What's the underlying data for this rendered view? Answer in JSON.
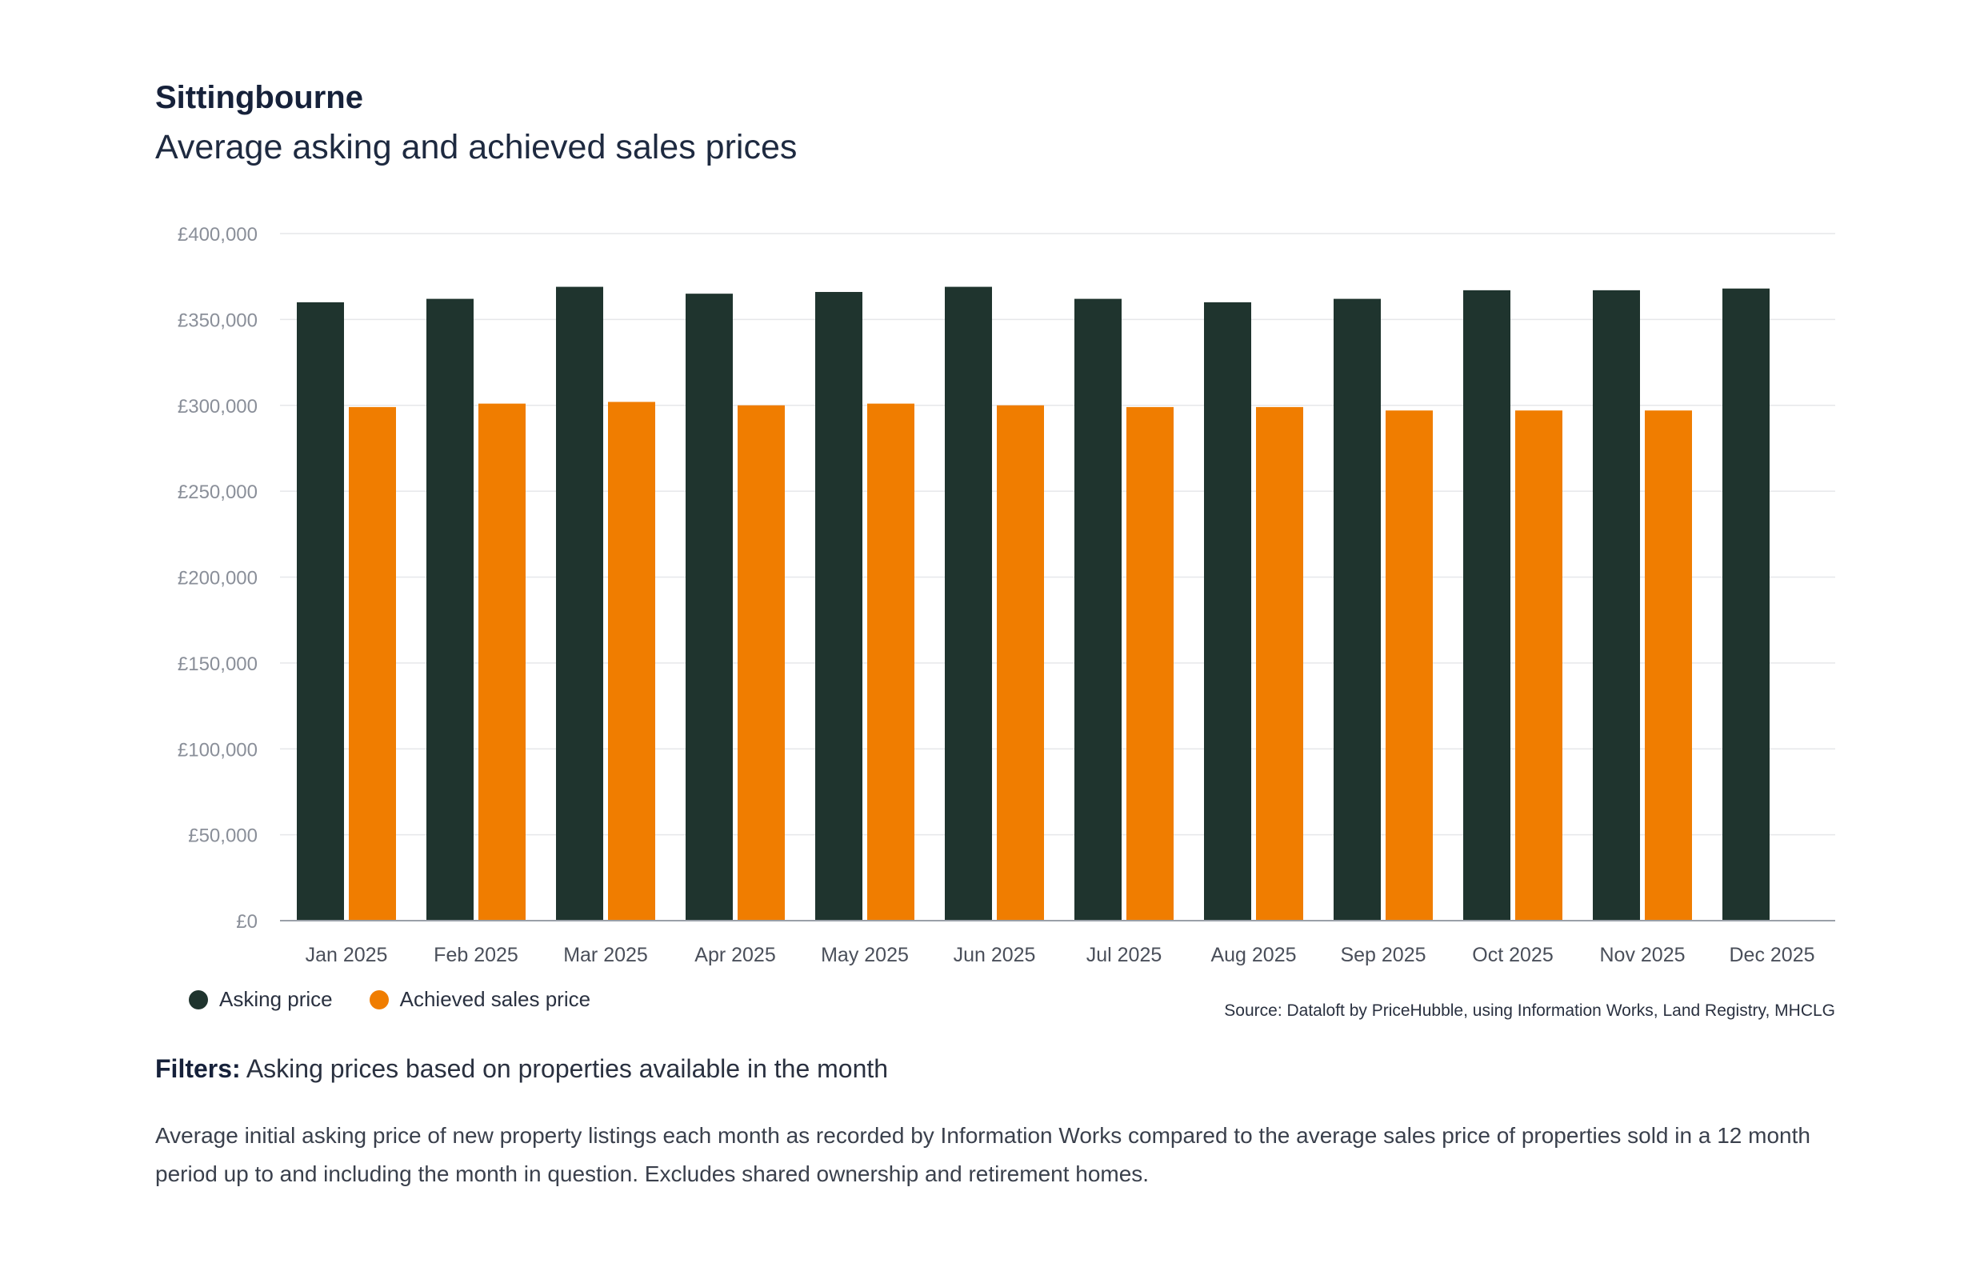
{
  "header": {
    "title": "Sittingbourne",
    "subtitle": "Average asking and achieved sales prices"
  },
  "colors": {
    "asking": "#1f342e",
    "achieved": "#f07d00"
  },
  "legend": {
    "asking_label": "Asking price",
    "achieved_label": "Achieved sales price"
  },
  "source": "Source: Dataloft by PriceHubble, using Information Works, Land Registry, MHCLG",
  "filters": {
    "label": "Filters:",
    "text": "Asking prices based on properties available in the month"
  },
  "description": "Average initial asking price of new property listings each month as recorded by Information Works compared to the average sales price of properties sold in a 12 month period up to and including the month in question. Excludes shared ownership and retirement homes.",
  "chart_data": {
    "type": "bar",
    "title": "Average asking and achieved sales prices",
    "xlabel": "",
    "ylabel": "",
    "ylim": [
      0,
      400000
    ],
    "yticks": [
      0,
      50000,
      100000,
      150000,
      200000,
      250000,
      300000,
      350000,
      400000
    ],
    "ytick_labels": [
      "£0",
      "£50,000",
      "£100,000",
      "£150,000",
      "£200,000",
      "£250,000",
      "£300,000",
      "£350,000",
      "£400,000"
    ],
    "grid": true,
    "legend_position": "bottom-left",
    "categories": [
      "Jan 2025",
      "Feb 2025",
      "Mar 2025",
      "Apr 2025",
      "May 2025",
      "Jun 2025",
      "Jul 2025",
      "Aug 2025",
      "Sep 2025",
      "Oct 2025",
      "Nov 2025",
      "Dec 2025"
    ],
    "series": [
      {
        "name": "Asking price",
        "values": [
          360000,
          362000,
          369000,
          365000,
          366000,
          369000,
          362000,
          360000,
          362000,
          367000,
          367000,
          368000
        ]
      },
      {
        "name": "Achieved sales price",
        "values": [
          299000,
          301000,
          302000,
          300000,
          301000,
          300000,
          299000,
          299000,
          297000,
          297000,
          297000,
          null
        ]
      }
    ]
  }
}
